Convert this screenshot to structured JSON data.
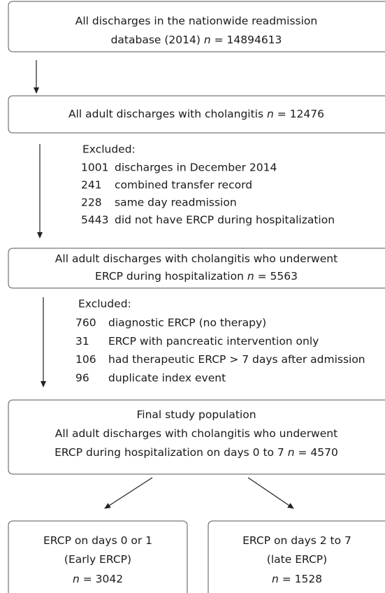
{
  "nodes": [
    {
      "lines": [
        [
          {
            "text": "All discharges in the nationwide readmission"
          }
        ],
        [
          {
            "text": "database (2014) "
          },
          {
            "text": "n",
            "italic": true
          },
          {
            "text": " = 14894613"
          }
        ]
      ]
    },
    {
      "lines": [
        [
          {
            "text": "All adult discharges with cholangitis "
          },
          {
            "text": "n",
            "italic": true
          },
          {
            "text": " = 12476"
          }
        ]
      ]
    },
    {
      "lines": [
        [
          {
            "text": "All adult discharges with cholangitis who underwent"
          }
        ],
        [
          {
            "text": "ERCP during hospitalization "
          },
          {
            "text": "n",
            "italic": true
          },
          {
            "text": " = 5563"
          }
        ]
      ]
    },
    {
      "lines": [
        [
          {
            "text": "Final study population"
          }
        ],
        [
          {
            "text": "All adult discharges with cholangitis who underwent"
          }
        ],
        [
          {
            "text": "ERCP during hospitalization on days 0 to 7 "
          },
          {
            "text": "n",
            "italic": true
          },
          {
            "text": " = 4570"
          }
        ]
      ]
    },
    {
      "lines": [
        [
          {
            "text": "ERCP on days 0 or 1"
          }
        ],
        [
          {
            "text": "(Early ERCP)"
          }
        ],
        [
          {
            "text": "n",
            "italic": true
          },
          {
            "text": " = 3042"
          }
        ]
      ]
    },
    {
      "lines": [
        [
          {
            "text": "ERCP on days 2 to 7"
          }
        ],
        [
          {
            "text": "(late ERCP)"
          }
        ],
        [
          {
            "text": "n",
            "italic": true
          },
          {
            "text": " = 1528"
          }
        ]
      ]
    }
  ],
  "exclusions": [
    {
      "heading": "Excluded:",
      "items": [
        {
          "count": "1001",
          "reason": "discharges in December 2014"
        },
        {
          "count": "241",
          "reason": "combined transfer record"
        },
        {
          "count": "228",
          "reason": "same day readmission"
        },
        {
          "count": "5443",
          "reason": "did not have ERCP during hospitalization"
        }
      ]
    },
    {
      "heading": "Excluded:",
      "items": [
        {
          "count": "760",
          "reason": "diagnostic ERCP (no therapy)"
        },
        {
          "count": "31",
          "reason": "ERCP with pancreatic intervention only"
        },
        {
          "count": "106",
          "reason": "had therapeutic ERCP > 7 days after admission"
        },
        {
          "count": "96",
          "reason": "duplicate index event"
        }
      ]
    }
  ]
}
